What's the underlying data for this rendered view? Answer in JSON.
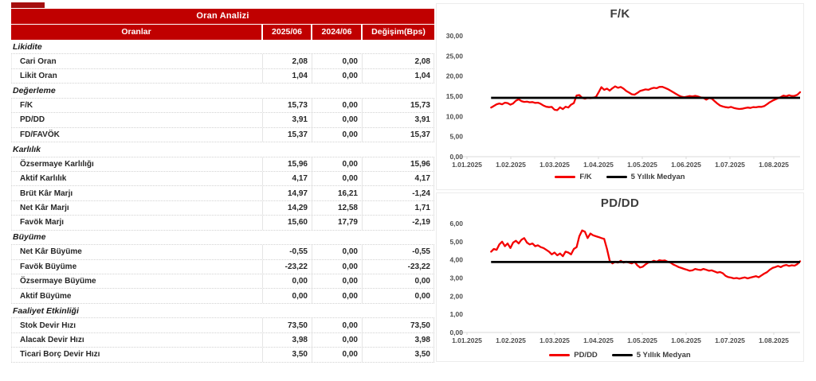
{
  "table": {
    "title": "Oran Analizi",
    "columns": [
      "Oranlar",
      "2025/06",
      "2024/06",
      "Değişim(Bps)"
    ],
    "sections": [
      {
        "name": "Likidite",
        "rows": [
          [
            "Cari Oran",
            "2,08",
            "0,00",
            "2,08"
          ],
          [
            "Likit Oran",
            "1,04",
            "0,00",
            "1,04"
          ]
        ]
      },
      {
        "name": "Değerleme",
        "rows": [
          [
            "F/K",
            "15,73",
            "0,00",
            "15,73"
          ],
          [
            "PD/DD",
            "3,91",
            "0,00",
            "3,91"
          ],
          [
            "FD/FAVÖK",
            "15,37",
            "0,00",
            "15,37"
          ]
        ]
      },
      {
        "name": "Karlılık",
        "rows": [
          [
            "Özsermaye Karlılığı",
            "15,96",
            "0,00",
            "15,96"
          ],
          [
            "Aktif Karlılık",
            "4,17",
            "0,00",
            "4,17"
          ],
          [
            "Brüt Kâr Marjı",
            "14,97",
            "16,21",
            "-1,24"
          ],
          [
            "Net Kâr Marjı",
            "14,29",
            "12,58",
            "1,71"
          ],
          [
            "Favök Marjı",
            "15,60",
            "17,79",
            "-2,19"
          ]
        ]
      },
      {
        "name": "Büyüme",
        "rows": [
          [
            "Net Kâr Büyüme",
            "-0,55",
            "0,00",
            "-0,55"
          ],
          [
            "Favök Büyüme",
            "-23,22",
            "0,00",
            "-23,22"
          ],
          [
            "Özsermaye Büyüme",
            "0,00",
            "0,00",
            "0,00"
          ],
          [
            "Aktif Büyüme",
            "0,00",
            "0,00",
            "0,00"
          ]
        ]
      },
      {
        "name": "Faaliyet Etkinliği",
        "rows": [
          [
            "Stok Devir Hızı",
            "73,50",
            "0,00",
            "73,50"
          ],
          [
            "Alacak Devir Hızı",
            "3,98",
            "0,00",
            "3,98"
          ],
          [
            "Ticari Borç Devir Hızı",
            "3,50",
            "0,00",
            "3,50"
          ]
        ]
      }
    ]
  },
  "colors": {
    "header_red": "#c00000",
    "accent_dark_red": "#a50d0d",
    "series_red": "#f40000",
    "median_black": "#000000",
    "axis_gray": "#d9d9d9"
  },
  "chart_data": [
    {
      "type": "line",
      "title": "F/K",
      "ylim": [
        0,
        30
      ],
      "y_tick_labels": [
        "30,00",
        "25,00",
        "20,00",
        "15,00",
        "10,00",
        "5,00",
        "0,00"
      ],
      "x_tick_labels": [
        "1.01.2025",
        "1.02.2025",
        "1.03.2025",
        "1.04.2025",
        "1.05.2025",
        "1.06.2025",
        "1.07.2025",
        "1.08.2025"
      ],
      "x_start_month": 0.55,
      "x_end_month": 7.6,
      "legend_position": "bottom",
      "grid": false,
      "series": [
        {
          "name": "F/K",
          "color": "#f40000",
          "values": [
            12.2,
            12.6,
            13.0,
            13.2,
            13.0,
            13.4,
            13.3,
            12.9,
            13.2,
            13.9,
            14.25,
            13.8,
            13.6,
            13.65,
            13.5,
            13.55,
            13.35,
            13.4,
            13.1,
            12.7,
            12.4,
            12.3,
            12.35,
            11.65,
            11.55,
            12.25,
            11.8,
            12.4,
            12.2,
            12.9,
            13.3,
            15.2,
            15.3,
            14.6,
            14.4,
            14.6,
            14.5,
            14.65,
            14.8,
            16.0,
            17.25,
            16.6,
            16.9,
            16.4,
            17.0,
            17.45,
            17.1,
            17.3,
            16.9,
            16.3,
            15.9,
            15.5,
            15.4,
            15.8,
            16.3,
            16.5,
            16.7,
            16.6,
            16.9,
            17.1,
            17.0,
            17.3,
            17.35,
            17.1,
            16.8,
            16.4,
            16.0,
            15.6,
            15.2,
            14.9,
            14.75,
            14.9,
            15.05,
            14.95,
            15.1,
            14.95,
            14.7,
            14.6,
            14.15,
            14.55,
            14.4,
            13.8,
            13.2,
            12.7,
            12.45,
            12.3,
            12.2,
            12.35,
            12.1,
            11.95,
            11.85,
            11.9,
            12.05,
            12.2,
            12.1,
            12.3,
            12.25,
            12.4,
            12.35,
            12.55,
            13.0,
            13.5,
            13.9,
            14.2,
            14.5,
            14.8,
            15.15,
            15.0,
            15.25,
            15.05,
            15.1,
            15.35,
            16.0
          ]
        },
        {
          "name": "5 Yıllık Medyan",
          "color": "#000000",
          "median_value": 14.6
        }
      ]
    },
    {
      "type": "line",
      "title": "PD/DD",
      "ylim": [
        0,
        6
      ],
      "y_tick_labels": [
        "6,00",
        "5,00",
        "4,00",
        "3,00",
        "2,00",
        "1,00",
        "0,00"
      ],
      "x_tick_labels": [
        "1.01.2025",
        "1.02.2025",
        "1.03.2025",
        "1.04.2025",
        "1.05.2025",
        "1.06.2025",
        "1.07.2025",
        "1.08.2025"
      ],
      "x_start_month": 0.55,
      "x_end_month": 7.6,
      "legend_position": "bottom",
      "grid": false,
      "series": [
        {
          "name": "PD/DD",
          "color": "#f40000",
          "values": [
            4.45,
            4.6,
            4.55,
            4.85,
            5.0,
            4.75,
            4.9,
            4.65,
            4.95,
            5.05,
            4.9,
            5.1,
            5.2,
            4.95,
            4.85,
            4.9,
            4.75,
            4.8,
            4.7,
            4.65,
            4.55,
            4.45,
            4.3,
            4.4,
            4.25,
            4.35,
            4.2,
            4.45,
            4.4,
            4.3,
            4.6,
            4.7,
            5.3,
            5.62,
            5.55,
            5.2,
            5.45,
            5.35,
            5.3,
            5.25,
            5.2,
            5.15,
            4.6,
            3.95,
            3.8,
            3.9,
            3.85,
            3.95,
            3.85,
            3.9,
            3.85,
            3.8,
            3.9,
            3.7,
            3.58,
            3.62,
            3.75,
            3.85,
            3.88,
            3.95,
            3.9,
            3.98,
            3.95,
            3.97,
            3.9,
            3.85,
            3.75,
            3.68,
            3.6,
            3.55,
            3.5,
            3.45,
            3.4,
            3.42,
            3.5,
            3.46,
            3.44,
            3.5,
            3.45,
            3.4,
            3.42,
            3.36,
            3.3,
            3.33,
            3.26,
            3.12,
            3.05,
            3.02,
            2.98,
            3.0,
            2.96,
            3.0,
            3.03,
            2.98,
            3.02,
            3.06,
            3.1,
            3.04,
            3.14,
            3.24,
            3.32,
            3.45,
            3.55,
            3.6,
            3.66,
            3.6,
            3.68,
            3.72,
            3.66,
            3.7,
            3.68,
            3.76,
            3.92
          ]
        },
        {
          "name": "5 Yıllık Medyan",
          "color": "#000000",
          "median_value": 3.88
        }
      ]
    }
  ]
}
